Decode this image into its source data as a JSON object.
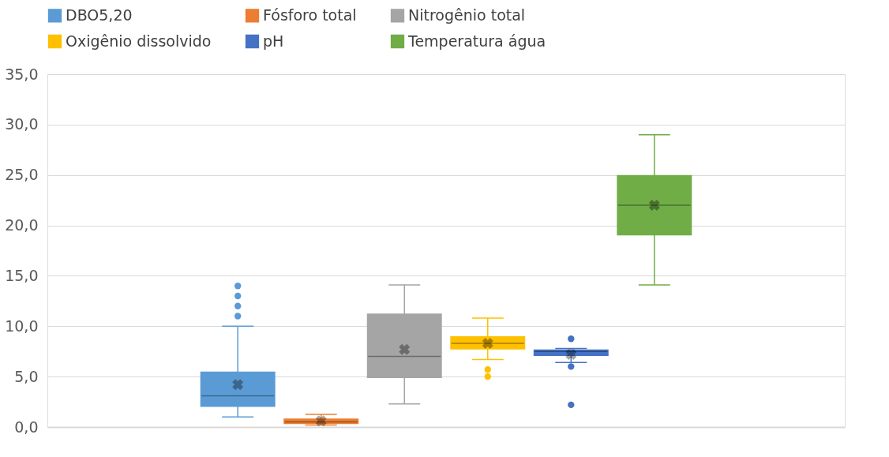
{
  "chart_data": {
    "type": "box",
    "categories": [
      null
    ],
    "series": [
      {
        "name": "DBO5,20",
        "color": "#5b9bd5",
        "boxes": [
          {
            "low": 1.0,
            "q1": 2.0,
            "median": 3.1,
            "q3": 5.5,
            "high": 10.0,
            "mean": 4.2,
            "outliers": [
              11.0,
              12.0,
              13.0,
              14.0
            ]
          }
        ]
      },
      {
        "name": "Fósforo total",
        "color": "#ed7d31",
        "boxes": [
          {
            "low": 0.2,
            "q1": 0.3,
            "median": 0.5,
            "q3": 0.85,
            "high": 1.25,
            "mean": 0.6
          }
        ]
      },
      {
        "name": "Nitrogênio total",
        "color": "#a5a5a5",
        "boxes": [
          {
            "low": 2.3,
            "q1": 4.85,
            "median": 7.0,
            "q3": 11.25,
            "high": 14.1,
            "mean": 7.7
          }
        ]
      },
      {
        "name": "Oxigênio dissolvido",
        "color": "#ffc000",
        "boxes": [
          {
            "low": 6.7,
            "q1": 7.7,
            "median": 8.3,
            "q3": 9.0,
            "high": 10.8,
            "mean": 8.3,
            "outliers": [
              5.0,
              5.7
            ]
          }
        ]
      },
      {
        "name": "pH",
        "color": "#4472c4",
        "boxes": [
          {
            "low": 6.4,
            "q1": 7.05,
            "median": 7.5,
            "q3": 7.7,
            "high": 7.8,
            "mean": 7.2,
            "outliers": [
              2.2,
              6.0,
              8.75
            ]
          }
        ]
      },
      {
        "name": "Temperatura água",
        "color": "#70ad47",
        "boxes": [
          {
            "low": 14.1,
            "q1": 19.0,
            "median": 22.0,
            "q3": 25.0,
            "high": 29.0,
            "mean": 22.0
          }
        ]
      }
    ],
    "ylim": [
      0,
      35
    ],
    "yticks": [
      {
        "value": 0,
        "label": "0,0"
      },
      {
        "value": 5,
        "label": "5,0"
      },
      {
        "value": 10,
        "label": "10,0"
      },
      {
        "value": 15,
        "label": "15,0"
      },
      {
        "value": 20,
        "label": "20,0"
      },
      {
        "value": 25,
        "label": "25,0"
      },
      {
        "value": 30,
        "label": "30,0"
      },
      {
        "value": 35,
        "label": "35,0"
      }
    ],
    "grid": "y",
    "legend": "top",
    "tick_labels": "y"
  }
}
